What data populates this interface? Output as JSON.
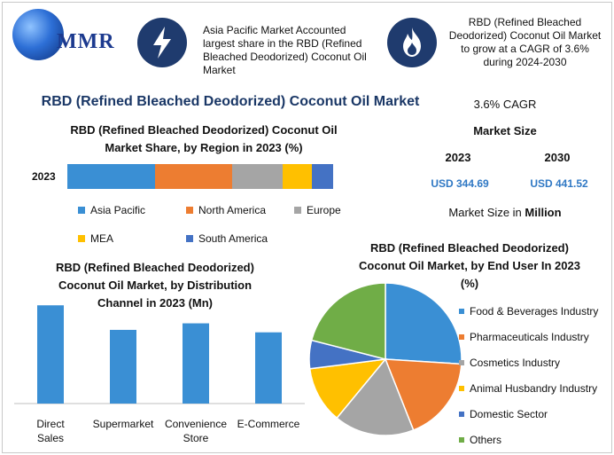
{
  "brand": {
    "name": "MMR"
  },
  "header": {
    "note_left": "Asia Pacific Market Accounted largest share in the RBD (Refined Bleached Deodorized) Coconut Oil Market",
    "note_right": "RBD (Refined Bleached Deodorized) Coconut Oil Market to grow at a CAGR of 3.6% during 2024-2030",
    "icon_left": "lightning-icon",
    "icon_right": "flame-icon"
  },
  "title": "RBD (Refined Bleached Deodorized) Coconut Oil Market",
  "cagr_label": "3.6% CAGR",
  "market_size": {
    "heading": "Market Size",
    "years": [
      "2023",
      "2030"
    ],
    "values": [
      "USD 344.69",
      "USD 441.52"
    ],
    "unit_text": "Market Size in ",
    "unit_strong": "Million"
  },
  "colors": {
    "blue": "#3a8fd4",
    "orange": "#ed7d31",
    "gray": "#a5a5a5",
    "yellow": "#ffc000",
    "darkblue": "#4472c4",
    "green": "#70ad47",
    "navy": "#1f3b6e",
    "title": "#1a3766"
  },
  "chart_data": [
    {
      "type": "bar",
      "orientation": "horizontal-stacked",
      "title": "RBD (Refined Bleached Deodorized) Coconut Oil Market Share, by Region in 2023 (%)",
      "categories": [
        "2023"
      ],
      "series": [
        {
          "name": "Asia Pacific",
          "values": [
            33
          ],
          "color": "#3a8fd4"
        },
        {
          "name": "North America",
          "values": [
            29
          ],
          "color": "#ed7d31"
        },
        {
          "name": "Europe",
          "values": [
            19
          ],
          "color": "#a5a5a5"
        },
        {
          "name": "MEA",
          "values": [
            11
          ],
          "color": "#ffc000"
        },
        {
          "name": "South America",
          "values": [
            8
          ],
          "color": "#4472c4"
        }
      ],
      "xlim": [
        0,
        100
      ],
      "legend": "bottom"
    },
    {
      "type": "bar",
      "title": "RBD (Refined Bleached Deodorized) Coconut Oil Market, by Distribution Channel in 2023 (Mn)",
      "categories": [
        "Direct Sales",
        "Supermarket",
        "Convenience Store",
        "E-Commerce"
      ],
      "values": [
        120,
        90,
        98,
        87
      ],
      "ylim": [
        0,
        130
      ],
      "color": "#3a8fd4"
    },
    {
      "type": "pie",
      "title": "RBD (Refined Bleached Deodorized) Coconut Oil Market, by End User In 2023 (%)",
      "labels": [
        "Food & Beverages Industry",
        "Pharmaceuticals Industry",
        "Cosmetics Industry",
        "Animal Husbandry Industry",
        "Domestic Sector",
        "Others"
      ],
      "values": [
        26,
        18,
        17,
        12,
        6,
        21
      ],
      "colors": [
        "#3a8fd4",
        "#ed7d31",
        "#a5a5a5",
        "#ffc000",
        "#4472c4",
        "#70ad47"
      ],
      "legend": "right"
    }
  ]
}
